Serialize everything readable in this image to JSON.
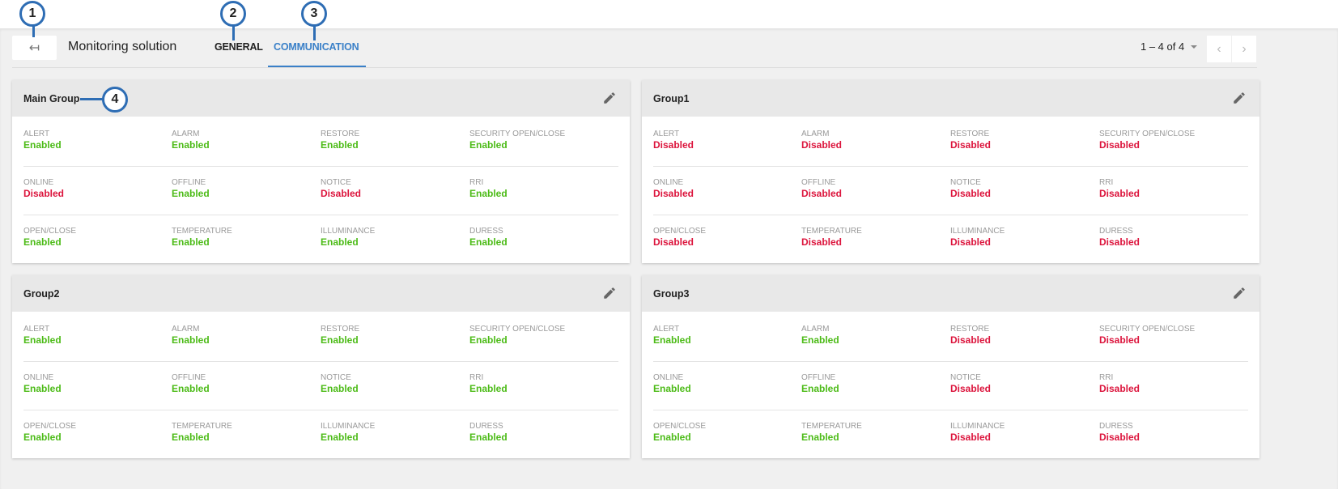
{
  "header": {
    "back_icon": "arrow-back-icon",
    "title": "Monitoring solution",
    "tabs": [
      {
        "label": "GENERAL",
        "active": false
      },
      {
        "label": "COMMUNICATION",
        "active": true
      }
    ],
    "pager": "1 – 4 of 4",
    "prev_icon": "chevron-left-icon",
    "next_icon": "chevron-right-icon"
  },
  "callouts": [
    "1",
    "2",
    "3",
    "4"
  ],
  "colors": {
    "enabled": "#4cbb17",
    "disabled": "#dc143c",
    "accent": "#3a80c8"
  },
  "groups": [
    {
      "name": "Main Group",
      "rows": [
        [
          [
            "ALERT",
            "Enabled"
          ],
          [
            "ALARM",
            "Enabled"
          ],
          [
            "RESTORE",
            "Enabled"
          ],
          [
            "SECURITY OPEN/CLOSE",
            "Enabled"
          ]
        ],
        [
          [
            "ONLINE",
            "Disabled"
          ],
          [
            "OFFLINE",
            "Enabled"
          ],
          [
            "NOTICE",
            "Disabled"
          ],
          [
            "RRI",
            "Enabled"
          ]
        ],
        [
          [
            "OPEN/CLOSE",
            "Enabled"
          ],
          [
            "TEMPERATURE",
            "Enabled"
          ],
          [
            "ILLUMINANCE",
            "Enabled"
          ],
          [
            "DURESS",
            "Enabled"
          ]
        ]
      ]
    },
    {
      "name": "Group1",
      "rows": [
        [
          [
            "ALERT",
            "Disabled"
          ],
          [
            "ALARM",
            "Disabled"
          ],
          [
            "RESTORE",
            "Disabled"
          ],
          [
            "SECURITY OPEN/CLOSE",
            "Disabled"
          ]
        ],
        [
          [
            "ONLINE",
            "Disabled"
          ],
          [
            "OFFLINE",
            "Disabled"
          ],
          [
            "NOTICE",
            "Disabled"
          ],
          [
            "RRI",
            "Disabled"
          ]
        ],
        [
          [
            "OPEN/CLOSE",
            "Disabled"
          ],
          [
            "TEMPERATURE",
            "Disabled"
          ],
          [
            "ILLUMINANCE",
            "Disabled"
          ],
          [
            "DURESS",
            "Disabled"
          ]
        ]
      ]
    },
    {
      "name": "Group2",
      "rows": [
        [
          [
            "ALERT",
            "Enabled"
          ],
          [
            "ALARM",
            "Enabled"
          ],
          [
            "RESTORE",
            "Enabled"
          ],
          [
            "SECURITY OPEN/CLOSE",
            "Enabled"
          ]
        ],
        [
          [
            "ONLINE",
            "Enabled"
          ],
          [
            "OFFLINE",
            "Enabled"
          ],
          [
            "NOTICE",
            "Enabled"
          ],
          [
            "RRI",
            "Enabled"
          ]
        ],
        [
          [
            "OPEN/CLOSE",
            "Enabled"
          ],
          [
            "TEMPERATURE",
            "Enabled"
          ],
          [
            "ILLUMINANCE",
            "Enabled"
          ],
          [
            "DURESS",
            "Enabled"
          ]
        ]
      ]
    },
    {
      "name": "Group3",
      "rows": [
        [
          [
            "ALERT",
            "Enabled"
          ],
          [
            "ALARM",
            "Enabled"
          ],
          [
            "RESTORE",
            "Disabled"
          ],
          [
            "SECURITY OPEN/CLOSE",
            "Disabled"
          ]
        ],
        [
          [
            "ONLINE",
            "Enabled"
          ],
          [
            "OFFLINE",
            "Enabled"
          ],
          [
            "NOTICE",
            "Disabled"
          ],
          [
            "RRI",
            "Disabled"
          ]
        ],
        [
          [
            "OPEN/CLOSE",
            "Enabled"
          ],
          [
            "TEMPERATURE",
            "Enabled"
          ],
          [
            "ILLUMINANCE",
            "Disabled"
          ],
          [
            "DURESS",
            "Disabled"
          ]
        ]
      ]
    }
  ]
}
